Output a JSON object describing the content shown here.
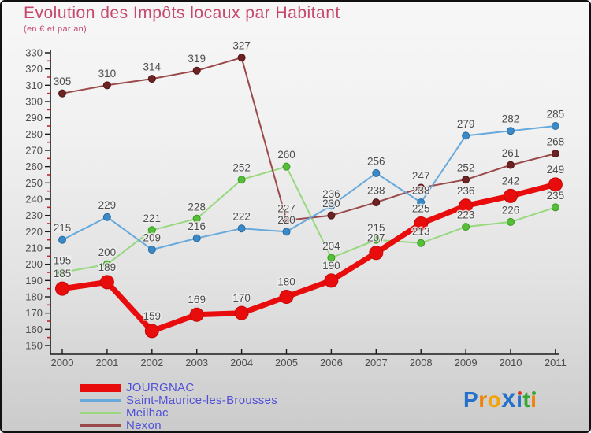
{
  "title": "Evolution des Impôts locaux par Habitant",
  "subtitle": "(en € et par an)",
  "title_color": "#c7486d",
  "chart_data": {
    "type": "line",
    "title": "Evolution des Impôts locaux par Habitant",
    "subtitle": "(en € et par an)",
    "x": [
      2000,
      2001,
      2002,
      2003,
      2004,
      2005,
      2006,
      2007,
      2008,
      2009,
      2010,
      2011
    ],
    "ylim": [
      150,
      330
    ],
    "ytick_step": 10,
    "ytick_minor_step": 5,
    "grid": false,
    "legend_position": "bottom-left",
    "axis_color": "#1a1a1a",
    "minor_tick_color": "#cc2222",
    "label_color": "#4d4d4d",
    "series": [
      {
        "name": "JOURGNAC",
        "values": [
          185,
          189,
          159,
          169,
          170,
          180,
          190,
          207,
          225,
          236,
          242,
          249
        ],
        "color": "#e80c0c",
        "dot_color": "#e80c0c",
        "dot_stroke": "#c40808",
        "line_width": 7,
        "dot_radius": 8.5
      },
      {
        "name": "Saint-Maurice-les-Brousses",
        "values": [
          215,
          229,
          209,
          216,
          222,
          220,
          236,
          256,
          238,
          279,
          282,
          285
        ],
        "color": "#68a9dc",
        "dot_color": "#3a8ac8",
        "dot_stroke": "#2a6a9e",
        "line_width": 2,
        "dot_radius": 4.5
      },
      {
        "name": "Meilhac",
        "values": [
          195,
          200,
          221,
          228,
          252,
          260,
          204,
          215,
          213,
          223,
          226,
          235
        ],
        "color": "#98d87e",
        "dot_color": "#54c038",
        "dot_stroke": "#3d9622",
        "line_width": 2,
        "dot_radius": 4.5
      },
      {
        "name": "Nexon",
        "values": [
          305,
          310,
          314,
          319,
          327,
          227,
          230,
          238,
          247,
          252,
          261,
          268
        ],
        "color": "#9a4a4a",
        "dot_color": "#6e2222",
        "dot_stroke": "#4e1515",
        "line_width": 2,
        "dot_radius": 4.5
      }
    ]
  },
  "legend": {
    "text_color": "#5050d8",
    "items": [
      "JOURGNAC",
      "Saint-Maurice-les-Brousses",
      "Meilhac",
      "Nexon"
    ]
  },
  "logo": {
    "text": "Proxiti",
    "letters": [
      {
        "ch": "P",
        "color": "#2570c8"
      },
      {
        "ch": "r",
        "color": "#ef8208"
      },
      {
        "ch": "o",
        "color": "#f2a30b"
      },
      {
        "ch": "x",
        "color": "#2570c8",
        "big": true
      },
      {
        "ch": "i",
        "color": "#2570c8",
        "dot_color": "#e03322"
      },
      {
        "ch": "t",
        "color": "#36a832"
      },
      {
        "ch": "i",
        "color": "#ef8208",
        "dot_color": "#36a832"
      }
    ]
  }
}
